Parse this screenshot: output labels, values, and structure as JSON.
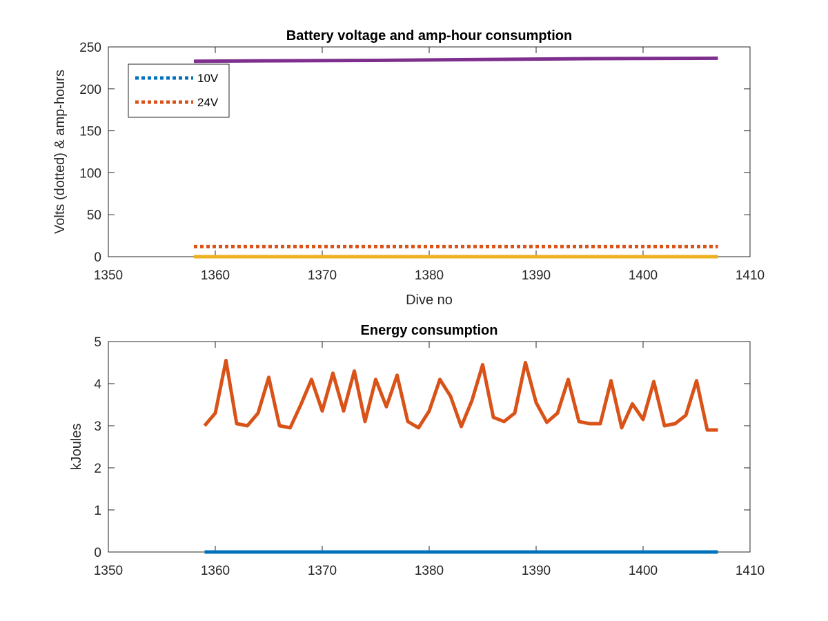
{
  "chart_data": [
    {
      "type": "line",
      "title": "Battery voltage and amp-hour consumption",
      "xlabel": "Dive no",
      "ylabel": "Volts (dotted) & amp-hours",
      "xlim": [
        1350,
        1410
      ],
      "ylim": [
        0,
        250
      ],
      "xticks": [
        1350,
        1360,
        1370,
        1380,
        1390,
        1400,
        1410
      ],
      "yticks": [
        0,
        50,
        100,
        150,
        200,
        250
      ],
      "legend_position": "top-left",
      "series": [
        {
          "name": "10V",
          "style": "dotted",
          "color": "#0072BD",
          "x": [
            1358,
            1407
          ],
          "y": [
            0,
            0
          ]
        },
        {
          "name": "24V",
          "style": "dotted",
          "color": "#D95319",
          "x": [
            1358,
            1407
          ],
          "y": [
            12,
            12
          ]
        },
        {
          "style": "solid",
          "color": "#EDB120",
          "x": [
            1358,
            1407
          ],
          "y": [
            0,
            0
          ]
        },
        {
          "style": "solid",
          "color": "#7E2F8E",
          "x": [
            1358,
            1365,
            1375,
            1385,
            1395,
            1407
          ],
          "y": [
            233,
            233.5,
            234,
            235,
            236,
            236.5
          ]
        }
      ]
    },
    {
      "type": "line",
      "title": "Energy consumption",
      "xlabel": "",
      "ylabel": "kJoules",
      "xlim": [
        1350,
        1410
      ],
      "ylim": [
        0,
        5
      ],
      "xticks": [
        1350,
        1360,
        1370,
        1380,
        1390,
        1400,
        1410
      ],
      "yticks": [
        0,
        1,
        2,
        3,
        4,
        5
      ],
      "series": [
        {
          "style": "solid",
          "color": "#0072BD",
          "x": [
            1359,
            1407
          ],
          "y": [
            0,
            0
          ]
        },
        {
          "style": "solid",
          "color": "#D95319",
          "x": [
            1359,
            1360,
            1361,
            1362,
            1363,
            1364,
            1365,
            1366,
            1367,
            1368,
            1369,
            1370,
            1371,
            1372,
            1373,
            1374,
            1375,
            1376,
            1377,
            1378,
            1379,
            1380,
            1381,
            1382,
            1383,
            1384,
            1385,
            1386,
            1387,
            1388,
            1389,
            1390,
            1391,
            1392,
            1393,
            1394,
            1395,
            1396,
            1397,
            1398,
            1399,
            1400,
            1401,
            1402,
            1403,
            1404,
            1405,
            1406,
            1407
          ],
          "y": [
            3.0,
            3.3,
            4.55,
            3.05,
            3.0,
            3.3,
            4.15,
            3.0,
            2.95,
            3.5,
            4.1,
            3.35,
            4.25,
            3.35,
            4.3,
            3.1,
            4.1,
            3.45,
            4.2,
            3.1,
            2.95,
            3.35,
            4.1,
            3.7,
            2.98,
            3.6,
            4.45,
            3.2,
            3.1,
            3.3,
            4.5,
            3.55,
            3.08,
            3.3,
            4.1,
            3.1,
            3.05,
            3.05,
            4.07,
            2.95,
            3.52,
            3.15,
            4.05,
            3.0,
            3.05,
            3.25,
            4.07,
            2.9,
            2.9
          ]
        }
      ]
    }
  ]
}
